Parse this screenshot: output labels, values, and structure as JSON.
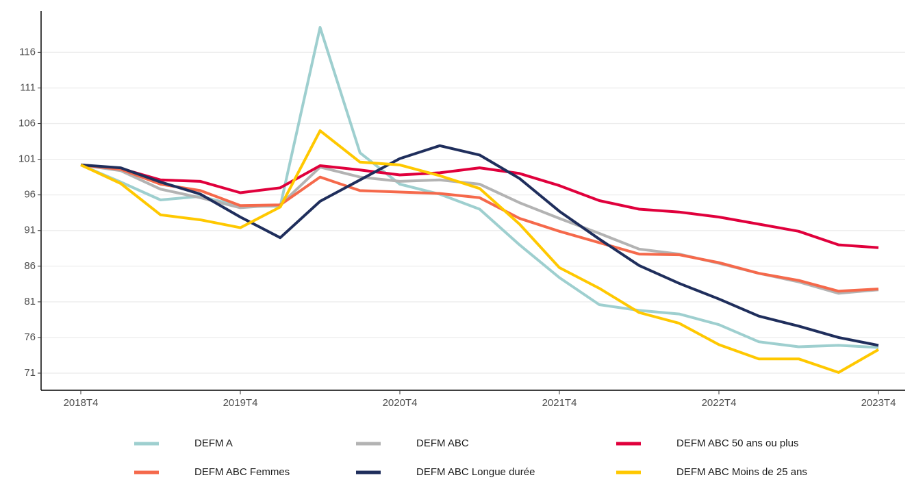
{
  "chart_data": {
    "type": "line",
    "categories": [
      "2018T4",
      null,
      null,
      null,
      "2019T4",
      null,
      null,
      null,
      "2020T4",
      null,
      null,
      null,
      "2021T4",
      null,
      null,
      null,
      "2022T4",
      null,
      null,
      null,
      "2023T4"
    ],
    "series": [
      {
        "name": "DEFM A",
        "color": "#9ecfcf",
        "values": [
          100.2,
          97.8,
          95.3,
          95.8,
          94.4,
          94.4,
          119.5,
          101.9,
          97.5,
          96.1,
          94.0,
          89.0,
          84.4,
          80.6,
          79.8,
          79.3,
          77.8,
          75.4,
          74.7,
          74.9,
          74.6
        ]
      },
      {
        "name": "DEFM ABC",
        "color": "#b3b3b3",
        "values": [
          100.2,
          99.4,
          96.8,
          95.6,
          94.2,
          94.6,
          99.9,
          98.5,
          97.9,
          98.1,
          97.5,
          94.9,
          92.7,
          90.6,
          88.4,
          87.7,
          86.4,
          85.0,
          83.8,
          82.2,
          82.7
        ]
      },
      {
        "name": "DEFM ABC 50 ans ou plus",
        "color": "#e0003c",
        "values": [
          100.2,
          99.7,
          98.1,
          97.9,
          96.3,
          97.0,
          100.1,
          99.5,
          98.8,
          99.1,
          99.8,
          99.0,
          97.3,
          95.2,
          94.0,
          93.6,
          92.9,
          91.9,
          90.9,
          89.0,
          88.6
        ]
      },
      {
        "name": "DEFM ABC Femmes",
        "color": "#f5694b",
        "values": [
          100.2,
          99.6,
          97.5,
          96.6,
          94.5,
          94.6,
          98.5,
          96.6,
          96.4,
          96.2,
          95.6,
          92.7,
          90.9,
          89.3,
          87.7,
          87.6,
          86.5,
          85.0,
          84.0,
          82.5,
          82.8
        ]
      },
      {
        "name": "DEFM ABC Longue durée",
        "color": "#1f2e5c",
        "values": [
          100.2,
          99.8,
          97.8,
          96.1,
          92.9,
          90.0,
          95.1,
          98.1,
          101.1,
          102.9,
          101.6,
          98.3,
          93.7,
          89.8,
          86.1,
          83.6,
          81.4,
          79.0,
          77.6,
          76.0,
          74.9
        ]
      },
      {
        "name": "DEFM ABC Moins de 25 ans",
        "color": "#ffc800",
        "values": [
          100.2,
          97.6,
          93.2,
          92.5,
          91.4,
          94.3,
          105.0,
          100.6,
          100.2,
          98.7,
          96.9,
          91.9,
          85.8,
          82.9,
          79.5,
          78.0,
          75.0,
          73.0,
          73.0,
          71.1,
          74.3
        ]
      }
    ],
    "ylim": [
      68.6,
      121.8
    ],
    "yticks": [
      71,
      76,
      81,
      86,
      91,
      96,
      101,
      106,
      111,
      116
    ],
    "grid": true,
    "legend": "bottom"
  }
}
